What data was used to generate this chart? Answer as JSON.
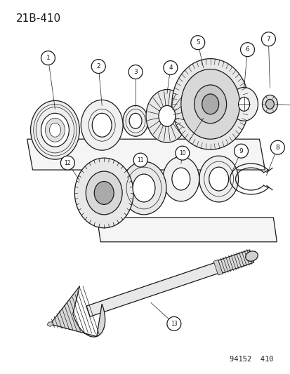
{
  "title": "21B-410",
  "footer": "94152  410",
  "bg_color": "#ffffff",
  "line_color": "#1a1a1a",
  "title_fontsize": 11,
  "footer_fontsize": 7.5
}
